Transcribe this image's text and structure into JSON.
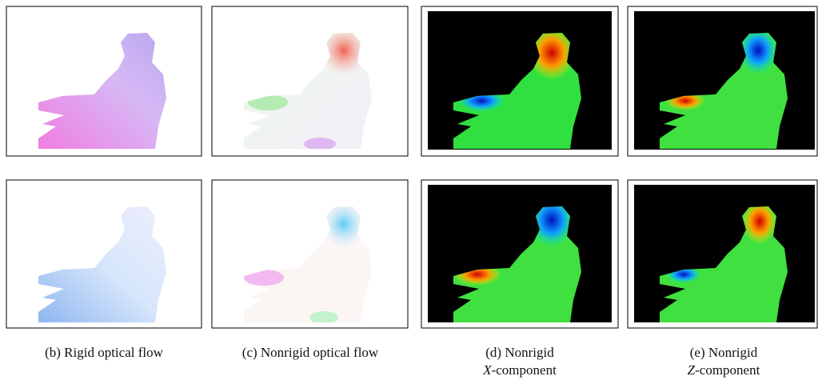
{
  "captions": [
    {
      "label": "(b)",
      "line1": "Rigid optical flow"
    },
    {
      "label": "(c)",
      "line1": "Nonrigid optical flow"
    },
    {
      "label": "(d)",
      "line1": "Nonrigid",
      "var": "X",
      "line2": "-component"
    },
    {
      "label": "(e)",
      "line1": "Nonrigid",
      "var": "Z",
      "line2": "-component"
    }
  ]
}
